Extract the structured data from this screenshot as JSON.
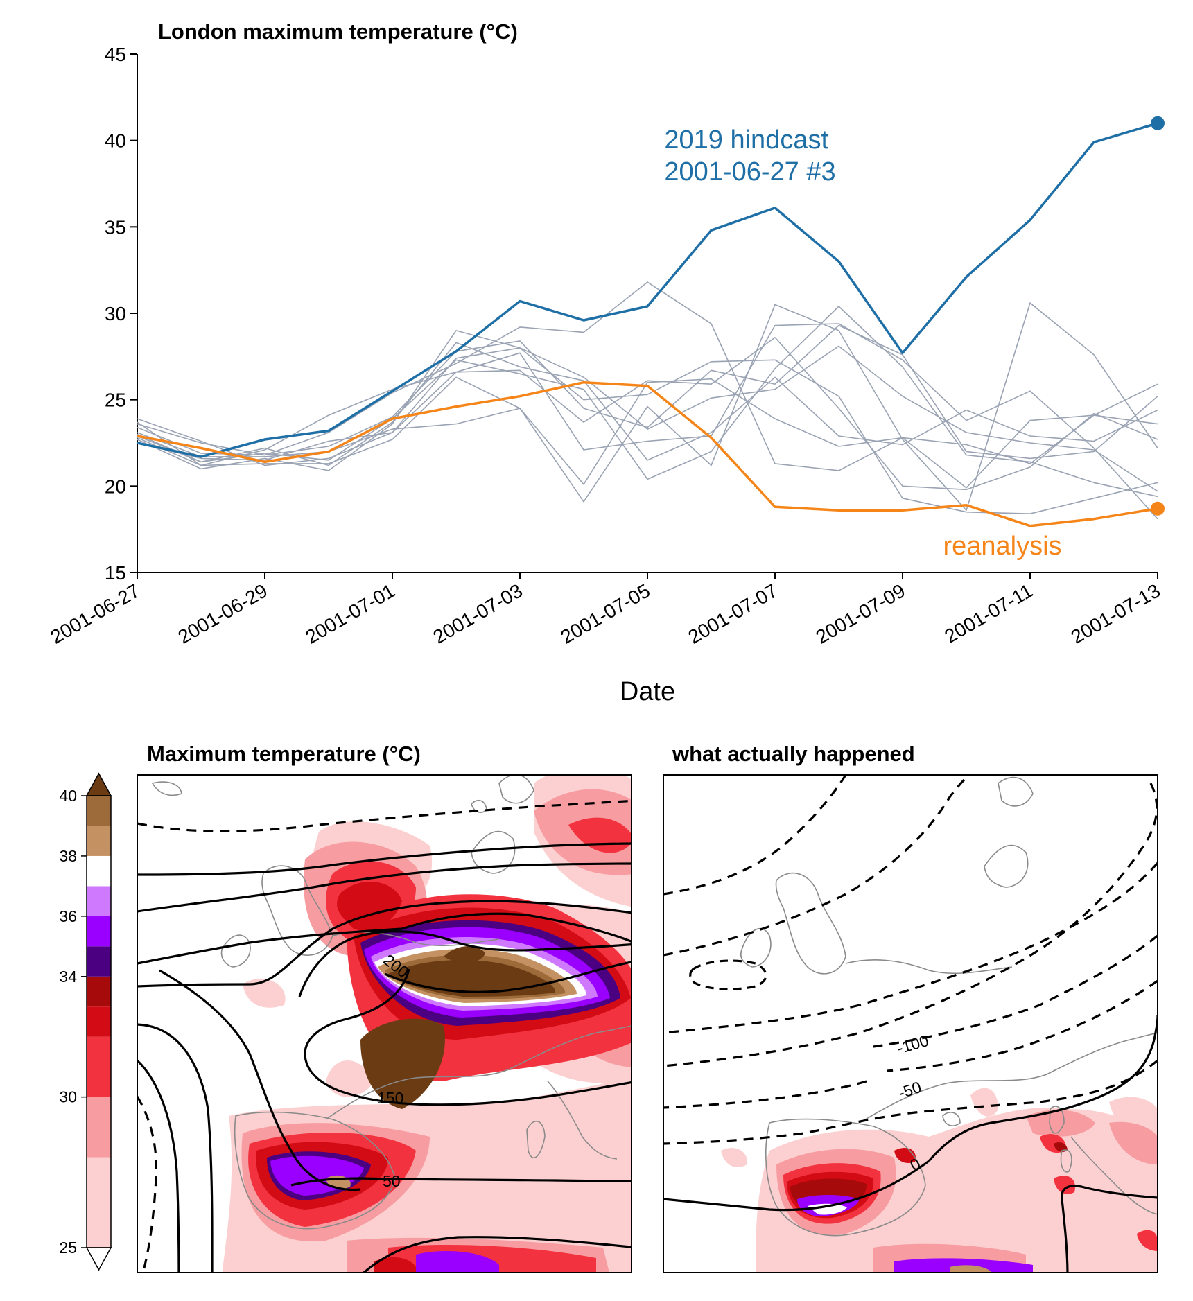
{
  "chart_data": [
    {
      "type": "line",
      "title": "London maximum temperature (°C)",
      "xlabel": "Date",
      "ylabel": "",
      "ylim": [
        15,
        45
      ],
      "yticks": [
        "15",
        "20",
        "25",
        "30",
        "35",
        "40",
        "45"
      ],
      "xticks": [
        "2001-06-27",
        "2001-06-29",
        "2001-07-01",
        "2001-07-03",
        "2001-07-05",
        "2001-07-07",
        "2001-07-09",
        "2001-07-11",
        "2001-07-13"
      ],
      "x": [
        "2001-06-27",
        "2001-06-28",
        "2001-06-29",
        "2001-06-30",
        "2001-07-01",
        "2001-07-02",
        "2001-07-03",
        "2001-07-04",
        "2001-07-05",
        "2001-07-06",
        "2001-07-07",
        "2001-07-08",
        "2001-07-09",
        "2001-07-10",
        "2001-07-11",
        "2001-07-12",
        "2001-07-13"
      ],
      "series": [
        {
          "values": [
            23.4,
            21.9,
            21.8,
            22.3,
            24.0,
            27.8,
            28.4,
            24.5,
            23.4,
            26.7,
            25.9,
            29.3,
            27.6,
            22.0,
            21.6,
            22.0,
            25.2
          ]
        },
        {
          "values": [
            23.0,
            21.4,
            22.2,
            21.2,
            23.7,
            28.3,
            26.9,
            26.1,
            21.5,
            23.1,
            26.3,
            22.9,
            22.4,
            24.4,
            22.9,
            22.6,
            24.4
          ]
        },
        {
          "values": [
            23.6,
            22.5,
            21.8,
            23.1,
            25.4,
            27.1,
            29.2,
            28.9,
            31.8,
            29.4,
            21.3,
            20.9,
            22.8,
            19.9,
            23.8,
            24.1,
            25.9
          ]
        },
        {
          "values": [
            22.5,
            21.6,
            21.5,
            22.6,
            23.1,
            27.4,
            28.0,
            26.3,
            23.3,
            25.1,
            25.6,
            28.1,
            25.2,
            23.1,
            22.5,
            22.1,
            19.7
          ]
        },
        {
          "values": [
            23.7,
            21.2,
            22.1,
            24.1,
            25.6,
            26.6,
            26.7,
            23.7,
            26.1,
            25.9,
            28.6,
            24.5,
            20.0,
            19.8,
            21.1,
            24.2,
            22.7
          ]
        },
        {
          "values": [
            22.7,
            21.0,
            21.6,
            20.9,
            23.6,
            29.0,
            28.0,
            25.0,
            25.3,
            27.2,
            27.3,
            25.2,
            19.3,
            18.5,
            18.4,
            19.3,
            20.2
          ]
        },
        {
          "values": [
            23.9,
            22.6,
            21.2,
            21.6,
            23.1,
            26.6,
            27.7,
            22.1,
            22.6,
            22.9,
            29.3,
            29.4,
            27.3,
            23.8,
            25.5,
            22.2,
            18.1
          ]
        },
        {
          "values": [
            22.8,
            21.2,
            21.3,
            21.3,
            22.7,
            26.3,
            24.5,
            19.1,
            24.6,
            21.2,
            30.5,
            29.0,
            22.7,
            18.6,
            30.6,
            27.6,
            22.2
          ]
        },
        {
          "values": [
            23.1,
            21.7,
            21.7,
            22.0,
            23.3,
            23.6,
            24.5,
            20.1,
            26.0,
            26.2,
            23.9,
            22.3,
            22.8,
            22.4,
            21.3,
            24.1,
            23.6
          ]
        },
        {
          "values": [
            22.9,
            21.4,
            21.9,
            21.5,
            23.9,
            27.3,
            26.5,
            25.6,
            20.4,
            22.0,
            26.8,
            30.4,
            26.9,
            21.8,
            21.4,
            20.2,
            19.4
          ]
        },
        {
          "name": "2019 hindcast\n2001-06-27 #3",
          "values": [
            22.5,
            21.7,
            22.7,
            23.2,
            25.5,
            27.8,
            30.7,
            29.6,
            30.4,
            34.8,
            36.1,
            33.0,
            27.7,
            32.1,
            35.4,
            39.9,
            41.0
          ]
        },
        {
          "name": "reanalysis",
          "values": [
            22.9,
            22.2,
            21.4,
            22.0,
            23.9,
            24.6,
            25.2,
            26.0,
            25.8,
            22.8,
            18.8,
            18.6,
            18.6,
            18.9,
            17.7,
            18.1,
            18.7
          ]
        }
      ],
      "colors": {
        "ensemble": "#9aa3b3",
        "hindcast": "#1f6fa7",
        "reanalysis": "#f58518"
      }
    },
    {
      "type": "heatmap",
      "title": "Maximum temperature (°C)",
      "colorbar": {
        "ticks": [
          "25",
          "30",
          "34",
          "36",
          "38",
          "40"
        ],
        "levels": [
          25,
          28,
          30,
          32,
          33,
          34,
          35,
          36,
          37,
          38,
          39,
          40
        ],
        "colors": [
          "#fcd0d0",
          "#f79ca0",
          "#f2333f",
          "#d30b14",
          "#a60a0a",
          "#4b0081",
          "#9a00ff",
          "#cf79ff",
          "#ffffff",
          "#c49262",
          "#9d6b3a"
        ],
        "extend": "both",
        "over_color": "#6b3b14",
        "under_color": "#ffffff"
      },
      "contour_labels": [
        "200",
        "150",
        "50"
      ]
    },
    {
      "type": "heatmap",
      "title": "what actually happened",
      "contour_labels": [
        "-100",
        "-50",
        "0"
      ]
    }
  ]
}
